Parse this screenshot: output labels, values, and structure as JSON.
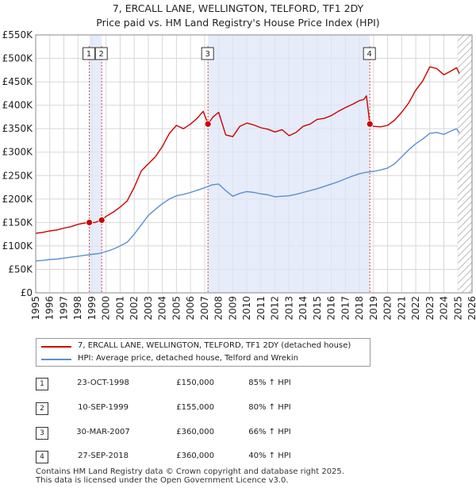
{
  "title": {
    "line1": "7, ERCALL LANE, WELLINGTON, TELFORD, TF1 2DY",
    "line2": "Price paid vs. HM Land Registry's House Price Index (HPI)"
  },
  "chart_data": {
    "type": "line",
    "xlim": [
      1995,
      2026
    ],
    "ylim": [
      0,
      550000
    ],
    "yticks": [
      0,
      50000,
      100000,
      150000,
      200000,
      250000,
      300000,
      350000,
      400000,
      450000,
      500000,
      550000
    ],
    "ytick_labels": [
      "£0",
      "£50K",
      "£100K",
      "£150K",
      "£200K",
      "£250K",
      "£300K",
      "£350K",
      "£400K",
      "£450K",
      "£500K",
      "£550K"
    ],
    "xticks": [
      1995,
      1996,
      1997,
      1998,
      1999,
      2000,
      2001,
      2002,
      2003,
      2004,
      2005,
      2006,
      2007,
      2008,
      2009,
      2010,
      2011,
      2012,
      2013,
      2014,
      2015,
      2016,
      2017,
      2018,
      2019,
      2020,
      2021,
      2022,
      2023,
      2024,
      2025,
      2026
    ],
    "shaded_spans": [
      [
        1998.81,
        1999.69
      ],
      [
        2007.24,
        2018.74
      ]
    ],
    "hatch_from": 2025.0,
    "series": [
      {
        "name": "7, ERCALL LANE, WELLINGTON, TELFORD, TF1 2DY (detached house)",
        "color": "#cc0000",
        "x": [
          1995.0,
          1995.5,
          1996.0,
          1996.5,
          1997.0,
          1997.5,
          1998.0,
          1998.5,
          1998.81,
          1999.2,
          1999.69,
          2000.0,
          2000.5,
          2001.0,
          2001.5,
          2002.0,
          2002.5,
          2003.0,
          2003.5,
          2004.0,
          2004.5,
          2005.0,
          2005.5,
          2006.0,
          2006.5,
          2006.9,
          2007.24,
          2007.6,
          2008.0,
          2008.5,
          2009.0,
          2009.5,
          2010.0,
          2010.5,
          2011.0,
          2011.5,
          2012.0,
          2012.5,
          2013.0,
          2013.5,
          2014.0,
          2014.5,
          2015.0,
          2015.5,
          2016.0,
          2016.5,
          2017.0,
          2017.5,
          2018.0,
          2018.3,
          2018.5,
          2018.6,
          2018.74,
          2019.0,
          2019.5,
          2020.0,
          2020.5,
          2021.0,
          2021.5,
          2022.0,
          2022.5,
          2023.0,
          2023.5,
          2024.0,
          2024.5,
          2024.9,
          2025.1
        ],
        "y": [
          127000,
          129000,
          132000,
          134000,
          138000,
          141000,
          146000,
          149000,
          150000,
          150000,
          155000,
          163000,
          172000,
          183000,
          196000,
          225000,
          260000,
          275000,
          290000,
          312000,
          340000,
          357000,
          350000,
          360000,
          373000,
          387000,
          360000,
          375000,
          385000,
          337000,
          333000,
          355000,
          362000,
          358000,
          352000,
          349000,
          343000,
          348000,
          335000,
          342000,
          355000,
          360000,
          370000,
          372000,
          378000,
          387000,
          395000,
          402000,
          410000,
          412000,
          420000,
          395000,
          360000,
          355000,
          354000,
          357000,
          368000,
          385000,
          405000,
          432000,
          452000,
          482000,
          478000,
          465000,
          473000,
          480000,
          468000
        ]
      },
      {
        "name": "HPI: Average price, detached house, Telford and Wrekin",
        "color": "#5b8fd0",
        "x": [
          1995.0,
          1995.5,
          1996.0,
          1996.5,
          1997.0,
          1997.5,
          1998.0,
          1998.5,
          1999.0,
          1999.5,
          2000.0,
          2000.5,
          2001.0,
          2001.5,
          2002.0,
          2002.5,
          2003.0,
          2003.5,
          2004.0,
          2004.5,
          2005.0,
          2005.5,
          2006.0,
          2006.5,
          2007.0,
          2007.5,
          2008.0,
          2008.5,
          2009.0,
          2009.5,
          2010.0,
          2010.5,
          2011.0,
          2011.5,
          2012.0,
          2012.5,
          2013.0,
          2013.5,
          2014.0,
          2014.5,
          2015.0,
          2015.5,
          2016.0,
          2016.5,
          2017.0,
          2017.5,
          2018.0,
          2018.5,
          2019.0,
          2019.5,
          2020.0,
          2020.5,
          2021.0,
          2021.5,
          2022.0,
          2022.5,
          2023.0,
          2023.5,
          2024.0,
          2024.5,
          2024.9,
          2025.1
        ],
        "y": [
          68000,
          69000,
          71000,
          72000,
          74000,
          76000,
          78000,
          80000,
          82000,
          84000,
          88000,
          93000,
          100000,
          108000,
          125000,
          145000,
          165000,
          178000,
          190000,
          200000,
          207000,
          210000,
          214000,
          219000,
          224000,
          230000,
          232000,
          218000,
          206000,
          212000,
          216000,
          214000,
          211000,
          209000,
          205000,
          206000,
          207000,
          210000,
          214000,
          218000,
          222000,
          227000,
          232000,
          237000,
          243000,
          249000,
          254000,
          257000,
          259000,
          262000,
          266000,
          275000,
          290000,
          305000,
          318000,
          328000,
          340000,
          342000,
          338000,
          345000,
          350000,
          341000
        ]
      }
    ],
    "sale_markers": [
      {
        "label": "1",
        "x": 1998.81,
        "y": 150000
      },
      {
        "label": "2",
        "x": 1999.69,
        "y": 155000
      },
      {
        "label": "3",
        "x": 2007.24,
        "y": 360000
      },
      {
        "label": "4",
        "x": 2018.74,
        "y": 360000
      }
    ]
  },
  "legend": {
    "property": "7, ERCALL LANE, WELLINGTON, TELFORD, TF1 2DY (detached house)",
    "hpi": "HPI: Average price, detached house, Telford and Wrekin"
  },
  "sales": [
    {
      "num": "1",
      "date": "23-OCT-1998",
      "price": "£150,000",
      "hpi": "85% ↑ HPI"
    },
    {
      "num": "2",
      "date": "10-SEP-1999",
      "price": "£155,000",
      "hpi": "80% ↑ HPI"
    },
    {
      "num": "3",
      "date": "30-MAR-2007",
      "price": "£360,000",
      "hpi": "66% ↑ HPI"
    },
    {
      "num": "4",
      "date": "27-SEP-2018",
      "price": "£360,000",
      "hpi": "40% ↑ HPI"
    }
  ],
  "footer": {
    "line1": "Contains HM Land Registry data © Crown copyright and database right 2025.",
    "line2": "This data is licensed under the Open Government Licence v3.0."
  }
}
